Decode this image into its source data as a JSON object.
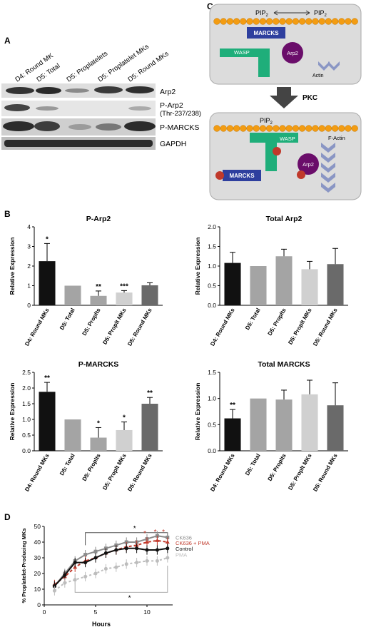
{
  "panels": {
    "A": {
      "letter": "A",
      "lanes": [
        "D4: Round MK",
        "D5: Total",
        "D5: Proplatelets",
        "D5: Proplatelet MKs",
        "D5: Round MKs"
      ],
      "rows": [
        "Arp2",
        "P-Arp2",
        "(Thr-237/238)",
        "P-MARCKS",
        "GAPDH"
      ]
    },
    "B": {
      "letter": "B"
    },
    "C": {
      "letter": "C",
      "pip2": "PIP",
      "pip2_sub": "2",
      "marcks": "MARCKS",
      "wasp": "WASP",
      "arp2": "Arp2",
      "actin": "Actin",
      "pkc": "PKC",
      "factin": "F-Actin"
    },
    "D": {
      "letter": "D",
      "legend": [
        "CK636",
        "CK636 + PMA",
        "Control",
        "PMA"
      ],
      "star": "*"
    }
  },
  "colors": {
    "black": "#111111",
    "grey1": "#a4a4a4",
    "grey2": "#d0d0d0",
    "grey3": "#6a6a6a",
    "ck636": "#8c8c8c",
    "ck636pma": "#c0392b",
    "pma": "#bdbdbd",
    "orange": "#f39c12",
    "blue": "#2e3f9e",
    "green": "#1fae7a",
    "purple": "#6a0d6a",
    "chevron": "#8a96c4"
  },
  "chart_data": [
    {
      "type": "bar",
      "title": "P-Arp2",
      "ylabel": "Relative Expression",
      "ylim": [
        0,
        4
      ],
      "yticks": [
        "0",
        "1",
        "2",
        "3",
        "4"
      ],
      "categories": [
        "D4: Round MKs",
        "D5: Total",
        "D5: Proplts",
        "D5: Proplt MKs",
        "D5: Round MKs"
      ],
      "values": [
        2.25,
        1.0,
        0.48,
        0.65,
        1.02
      ],
      "errors": [
        0.9,
        0,
        0.25,
        0.1,
        0.13
      ],
      "significance": [
        "*",
        "",
        "**",
        "***",
        ""
      ]
    },
    {
      "type": "bar",
      "title": "Total Arp2",
      "ylabel": "Relative Expression",
      "ylim": [
        0,
        2.0
      ],
      "yticks": [
        "0.0",
        "0.5",
        "1.0",
        "1.5",
        "2.0"
      ],
      "categories": [
        "D4: Round MKs",
        "D5: Total",
        "D5: Proplts",
        "D5: Proplt MKs",
        "D5: Round MKs"
      ],
      "values": [
        1.08,
        1.0,
        1.25,
        0.92,
        1.05
      ],
      "errors": [
        0.27,
        0,
        0.18,
        0.2,
        0.4
      ],
      "significance": [
        "",
        "",
        "",
        "",
        ""
      ]
    },
    {
      "type": "bar",
      "title": "P-MARCKS",
      "ylabel": "Relative Expression",
      "ylim": [
        0,
        2.5
      ],
      "yticks": [
        "0.0",
        "0.5",
        "1.0",
        "1.5",
        "2.0",
        "2.5"
      ],
      "categories": [
        "D4: Round MKs",
        "D5: Total",
        "D5: Proplts",
        "D5: Proplt MKs",
        "D5: Round MKs"
      ],
      "values": [
        1.88,
        1.0,
        0.42,
        0.66,
        1.5
      ],
      "errors": [
        0.3,
        0,
        0.32,
        0.26,
        0.2
      ],
      "significance": [
        "**",
        "",
        "*",
        "*",
        "**"
      ]
    },
    {
      "type": "bar",
      "title": "Total MARCKS",
      "ylabel": "Relative Expression",
      "ylim": [
        0,
        1.5
      ],
      "yticks": [
        "0.0",
        "0.5",
        "1.0",
        "1.5"
      ],
      "categories": [
        "D4: Round MKs",
        "D5: Total",
        "D5: Proplts",
        "D5: Proplt MKs",
        "D5: Round MKs"
      ],
      "values": [
        0.62,
        1.0,
        0.98,
        1.08,
        0.87
      ],
      "errors": [
        0.17,
        0,
        0.18,
        0.27,
        0.43
      ],
      "significance": [
        "**",
        "",
        "",
        "",
        ""
      ]
    },
    {
      "type": "line",
      "ylabel": "% Proplatelet-Producing MKs",
      "xlabel": "Hours",
      "xlim": [
        0,
        12.5
      ],
      "ylim": [
        0,
        50
      ],
      "xticks": [
        "0",
        "5",
        "10"
      ],
      "yticks": [
        "0",
        "10",
        "20",
        "30",
        "40",
        "50"
      ],
      "x": [
        1,
        2,
        3,
        4,
        5,
        6,
        7,
        8,
        9,
        10,
        11,
        12
      ],
      "series": [
        {
          "name": "CK636",
          "values": [
            12,
            20,
            28,
            32,
            34,
            36,
            38,
            40,
            40,
            42,
            44,
            43
          ],
          "err": 3
        },
        {
          "name": "CK636 + PMA",
          "values": [
            13,
            18,
            24,
            28,
            30,
            33,
            35,
            37,
            38,
            40,
            41,
            40
          ],
          "err": 3
        },
        {
          "name": "Control",
          "values": [
            12,
            19,
            27,
            27,
            30,
            33,
            35,
            36,
            36,
            35,
            35,
            36
          ],
          "err": 3
        },
        {
          "name": "PMA",
          "values": [
            9,
            14,
            16,
            18,
            20,
            23,
            24,
            26,
            27,
            28,
            28,
            30
          ],
          "err": 3
        }
      ],
      "annotations": [
        "*",
        "*",
        "*",
        "*",
        "*"
      ]
    }
  ]
}
